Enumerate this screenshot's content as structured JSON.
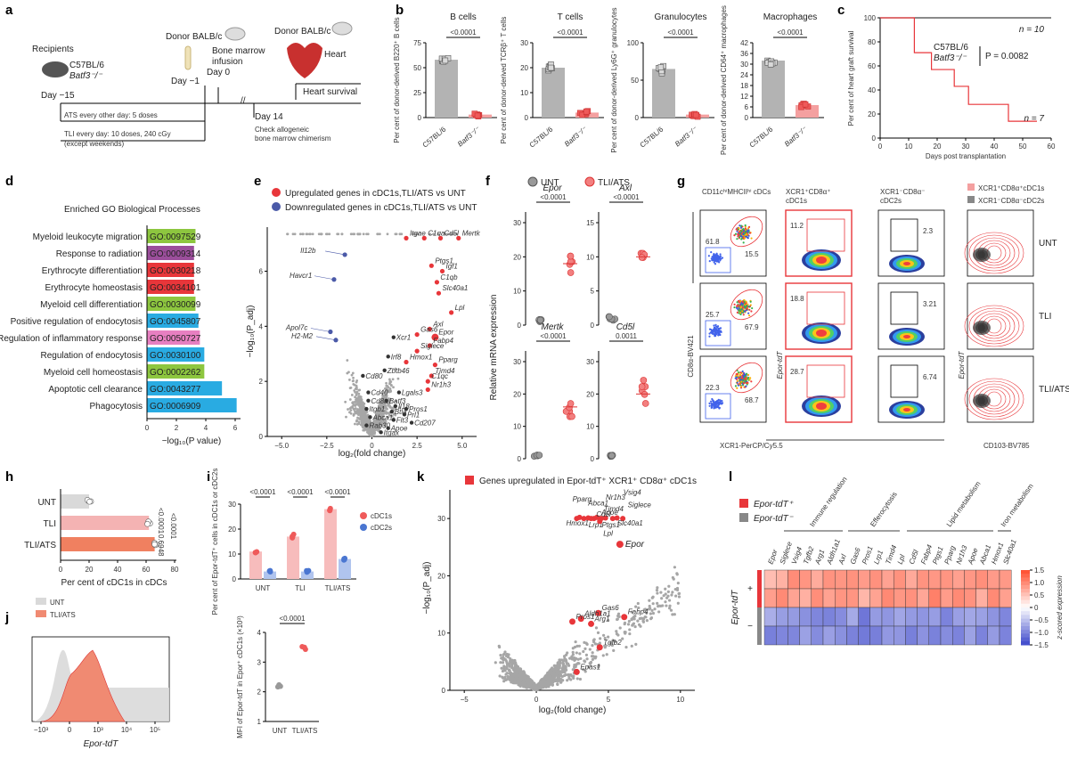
{
  "panels": {
    "a": {
      "label": "a",
      "recipients": "Recipients",
      "strain": "C57BL/6",
      "ko": "Batf3⁻/⁻",
      "day_m15": "Day −15",
      "donor1": "Donor BALB/c",
      "bm": "Bone marrow",
      "infusion": "infusion",
      "day_m1": "Day −1",
      "day0": "Day 0",
      "donor2": "Donor BALB/c",
      "heart": "Heart",
      "heart_survival": "Heart survival",
      "ats": "ATS every other day: 5 doses",
      "tli": "TLI every day: 10 doses, 240 cGy",
      "tli2": "(except weekends)",
      "day14": "Day 14",
      "check": "Check allogeneic",
      "chim": "bone marrow chimerism"
    },
    "b": {
      "label": "b",
      "groups": [
        {
          "title": "B cells",
          "ylabel": "Per cent of donor-derived B220⁺ B cells",
          "ymax": 75,
          "ticks": [
            0,
            25,
            50,
            75
          ],
          "wt": 58,
          "ko": 3,
          "p": "<0.0001"
        },
        {
          "title": "T cells",
          "ylabel": "Per cent of donor-derived TCRβ⁺ T cells",
          "ymax": 30,
          "ticks": [
            0,
            10,
            20,
            30
          ],
          "wt": 20,
          "ko": 2,
          "p": "<0.0001"
        },
        {
          "title": "Granulocytes",
          "ylabel": "Per cent of donor-derived Ly6G⁺ granulocytes",
          "ymax": 100,
          "ticks": [
            0,
            50,
            100
          ],
          "wt": 65,
          "ko": 4,
          "p": "<0.0001"
        },
        {
          "title": "Macrophages",
          "ylabel": "Per cent of donor-derived CD64⁺ macrophages",
          "ymax": 42,
          "ticks": [
            0,
            6,
            12,
            18,
            24,
            30,
            36,
            42
          ],
          "wt": 32,
          "ko": 7,
          "p": "<0.0001"
        }
      ],
      "xlabels": [
        "C57BL/6",
        "Batf3⁻/⁻"
      ]
    },
    "c": {
      "label": "c",
      "ylabel": "Per cent of heart graft survival",
      "xlabel": "Days post transplantation",
      "xticks": [
        "0",
        "10",
        "20",
        "30",
        "40",
        "50",
        "60"
      ],
      "yticks": [
        "0",
        "20",
        "40",
        "60",
        "80",
        "100"
      ],
      "n1": "n = 10",
      "n2": "n = 7",
      "leg1": "C57BL/6",
      "leg2": "Batf3⁻/⁻",
      "p": "P = 0.0082",
      "ko_steps": [
        [
          0,
          100
        ],
        [
          12,
          100
        ],
        [
          12,
          71
        ],
        [
          18,
          71
        ],
        [
          18,
          57
        ],
        [
          26,
          57
        ],
        [
          26,
          43
        ],
        [
          31,
          43
        ],
        [
          31,
          28
        ],
        [
          45,
          28
        ],
        [
          45,
          14
        ],
        [
          55,
          14
        ]
      ],
      "colors": {
        "wt": "#444444",
        "ko": "#e8363a"
      }
    },
    "d": {
      "label": "d",
      "title": "Enriched GO Biological Processes",
      "xlabel": "−log₁₀(P value)",
      "xticks": [
        "0",
        "2",
        "4",
        "6"
      ],
      "terms": [
        {
          "name": "Myeloid leukocyte migration",
          "go": "GO:0097529",
          "v": 3.3,
          "c": "#8dc63f"
        },
        {
          "name": "Response to radiation",
          "go": "GO:0009314",
          "v": 3.2,
          "c": "#9b4e9b"
        },
        {
          "name": "Erythrocyte differentiation",
          "go": "GO:0030218",
          "v": 3.2,
          "c": "#e8363a"
        },
        {
          "name": "Erythrocyte homeostasis",
          "go": "GO:0034101",
          "v": 3.2,
          "c": "#e8363a"
        },
        {
          "name": "Myeloid cell differentiation",
          "go": "GO:0030099",
          "v": 3.3,
          "c": "#8dc63f"
        },
        {
          "name": "Positive regulation of endocytosis",
          "go": "GO:0045807",
          "v": 3.5,
          "c": "#29abe2"
        },
        {
          "name": "Regulation of inflammatory response",
          "go": "GO:0050727",
          "v": 3.6,
          "c": "#e77fc1"
        },
        {
          "name": "Regulation of endocytosis",
          "go": "GO:0030100",
          "v": 3.9,
          "c": "#29abe2"
        },
        {
          "name": "Myeloid cell homeostasis",
          "go": "GO:0002262",
          "v": 3.9,
          "c": "#8dc63f"
        },
        {
          "name": "Apoptotic cell clearance",
          "go": "GO:0043277",
          "v": 5.1,
          "c": "#29abe2"
        },
        {
          "name": "Phagocytosis",
          "go": "GO:0006909",
          "v": 6.1,
          "c": "#29abe2"
        }
      ]
    },
    "e": {
      "label": "e",
      "leg_up": "Upregulated genes in cDC1s,TLI/ATS vs UNT",
      "leg_down": "Downregulated genes in cDC1s,TLI/ATS vs UNT",
      "ylabel": "−log₁₀(P_adj)",
      "xlabel": "log₂(fold change)",
      "xticks": [
        "−5.0",
        "−2.5",
        "0",
        "2.5",
        "5.0"
      ],
      "yticks": [
        "0",
        "2",
        "4",
        "6"
      ],
      "up": [
        "Itgae",
        "C1qa",
        "Cd5l",
        "Mertk",
        "Ptgs1",
        "Igf1",
        "C1qb",
        "Slc40a1",
        "Lpl",
        "Axl",
        "Epor",
        "Gas6",
        "Fabp4",
        "Siglece",
        "Hmox1",
        "Pparg",
        "Timd4",
        "C1qc",
        "Nr1h3"
      ],
      "down": [
        "Il12b",
        "Havcr1",
        "Apol7c",
        "H2-M2"
      ],
      "other": [
        "Xcr1",
        "Irf8",
        "Zbtb46",
        "Cd80",
        "Cd40",
        "Cd8a",
        "Itgb1",
        "Abca1",
        "Rab30",
        "Itgax",
        "Apoe",
        "Batf3",
        "Il18",
        "Btla",
        "Prl1",
        "Pros1",
        "Cd207",
        "Flt3",
        "Lgals3"
      ]
    },
    "f": {
      "label": "f",
      "leg_unt": "UNT",
      "leg_tli": "TLI/ATS",
      "ylabel": "Relative mRNA expression",
      "genes": [
        {
          "name": "Epor",
          "p": "<0.0001",
          "yt": [
            "0",
            "10",
            "20",
            "30"
          ],
          "unt": 1.5,
          "tli": 18
        },
        {
          "name": "Axl",
          "p": "<0.0001",
          "yt": [
            "0",
            "5",
            "10",
            "15"
          ],
          "unt": 1,
          "tli": 10
        },
        {
          "name": "Mertk",
          "p": "<0.0001",
          "yt": [
            "0",
            "10",
            "20",
            "30"
          ],
          "unt": 1,
          "tli": 16
        },
        {
          "name": "Cd5l",
          "p": "0.0011",
          "yt": [
            "0",
            "10",
            "20",
            "30"
          ],
          "unt": 1,
          "tli": 20
        }
      ]
    },
    "g": {
      "label": "g",
      "row_labels": [
        "UNT",
        "TLI",
        "TLI/ATS"
      ],
      "col1": "CD11cʰⁱMHCIIʰⁱ cDCs",
      "col2a": "XCR1⁺CD8α⁺",
      "col2b": "cDC1s",
      "col3a": "XCR1⁻CD8α⁻",
      "col3b": "cDC2s",
      "leg1": "XCR1⁺CD8α⁺cDC1s",
      "leg2": "XCR1⁻CD8α⁻cDC2s",
      "xlab1": "XCR1-PerCP/Cy5.5",
      "ylab1": "CD8α-BV421",
      "ylab2": "Epor-tdT",
      "ylab3": "Epor-tdT",
      "xlab3": "CD103-BV785",
      "cdc1": [
        "15.5",
        "67.9",
        "68.7"
      ],
      "cdc2": [
        "61.8",
        "25.7",
        "22.3"
      ],
      "epor1": [
        "11.2",
        "18.8",
        "28.7"
      ],
      "epor2": [
        "2.3",
        "3.21",
        "6.74"
      ]
    },
    "h": {
      "label": "h",
      "rows": [
        "UNT",
        "TLI",
        "TLI/ATS"
      ],
      "vals": [
        20,
        62,
        66
      ],
      "xlabel": "Per cent of cDC1s in cDCs",
      "xticks": [
        "0",
        "20",
        "40",
        "60",
        "80"
      ],
      "p1": "<0.0001",
      "p2": "0.6948",
      "p3": "<0.0001"
    },
    "i": {
      "label": "i",
      "ylabel": "Per cent of Epor-tdT⁺ cells in cDC1s or cDC2s",
      "groups": [
        "UNT",
        "TLI",
        "TLI/ATS"
      ],
      "cdc1": [
        11,
        17,
        28
      ],
      "cdc2": [
        3,
        3,
        8
      ],
      "leg1": "cDC1s",
      "leg2": "cDC2s",
      "p": "<0.0001",
      "yticks": [
        "0",
        "10",
        "20",
        "30"
      ],
      "mfi_ylabel": "MFI of Epor-tdT in Epor⁺ cDC1s (×10³)",
      "mfi_groups": [
        "UNT",
        "TLI/ATS"
      ],
      "mfi_vals": [
        2.2,
        3.5
      ],
      "mfi_p": "<0.0001",
      "mfi_yticks": [
        "1",
        "2",
        "3",
        "4"
      ]
    },
    "j": {
      "label": "j",
      "leg1": "UNT",
      "leg2": "TLI/ATS",
      "xlabel": "Epor-tdT",
      "xticks": [
        "−10³",
        "0",
        "10³",
        "10⁴",
        "10⁵"
      ]
    },
    "k": {
      "label": "k",
      "legend": "Genes upregulated in Epor-tdT⁺ XCR1⁺ CD8α⁺ cDC1s",
      "ylabel": "−log₁₀(P_adj)",
      "xlabel": "log₂(fold change)",
      "xticks": [
        "−5",
        "0",
        "5",
        "10"
      ],
      "yticks": [
        "0",
        "10",
        "20",
        "30"
      ],
      "top": [
        "Pparg",
        "Abca1",
        "Nr1h3",
        "Vsig4",
        "Timd4",
        "Siglece",
        "Apoe",
        "Cd5l",
        "Hmox1",
        "Lrp1",
        "Slc40a1",
        "Ptgs1",
        "Lpl"
      ],
      "mid": [
        "Gas6",
        "Aldh1a1",
        "Fabp4",
        "Pros1",
        "Arg1",
        "Tgfb2",
        "Epas1"
      ],
      "epor": "Epor"
    },
    "l": {
      "label": "l",
      "leg1": "Epor-tdT⁺",
      "leg2": "Epor-tdT⁻",
      "cats": [
        "Immune regulation",
        "Efferocytosis",
        "Lipid metabolism",
        "Iron metabolism"
      ],
      "genes": [
        "Epor",
        "Siglece",
        "Vsig4",
        "Tgfb2",
        "Arg1",
        "Aldh1a1",
        "Axl",
        "Gas6",
        "Pros1",
        "Lrp1",
        "Timd4",
        "Lpl",
        "Cd5l",
        "Fabp4",
        "Ptgs1",
        "Pparg",
        "Nr1h3",
        "Apoe",
        "Abca1",
        "Hmox1",
        "Slc40a1"
      ],
      "ylab": "Epor-tdT",
      "plus": "+",
      "minus": "−",
      "cbar": "z-scored expression",
      "cbar_ticks": [
        "1.5",
        "1.0",
        "0.5",
        "0",
        "−0.5",
        "−1.0",
        "−1.5"
      ]
    }
  }
}
